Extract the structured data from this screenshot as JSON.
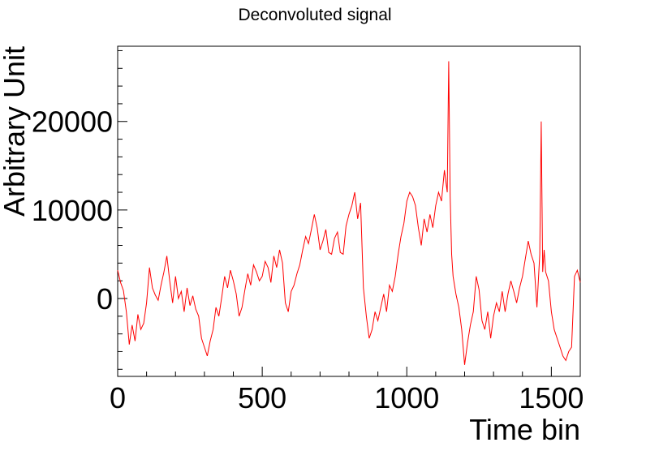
{
  "chart_data": {
    "type": "line",
    "title": "Deconvoluted signal",
    "xlabel": "Time bin",
    "ylabel": "Arbitrary Unit",
    "xlim": [
      0,
      1600
    ],
    "ylim": [
      -8800,
      28500
    ],
    "x_ticks": [
      0,
      500,
      1000,
      1500
    ],
    "y_ticks": [
      0,
      10000,
      20000
    ],
    "grid": false,
    "legend": "none",
    "line_color": "#ff0000",
    "series": [
      {
        "x": [
          0,
          10,
          20,
          30,
          40,
          50,
          60,
          70,
          80,
          90,
          100,
          110,
          120,
          130,
          140,
          150,
          160,
          170,
          180,
          190,
          200,
          210,
          220,
          230,
          240,
          250,
          260,
          270,
          280,
          290,
          300,
          310,
          320,
          330,
          340,
          350,
          360,
          370,
          380,
          390,
          400,
          410,
          420,
          430,
          440,
          450,
          460,
          470,
          480,
          490,
          500,
          510,
          520,
          530,
          540,
          550,
          560,
          570,
          580,
          590,
          600,
          610,
          620,
          630,
          640,
          650,
          660,
          670,
          680,
          690,
          700,
          710,
          720,
          730,
          740,
          750,
          760,
          770,
          780,
          790,
          800,
          810,
          820,
          830,
          840,
          850,
          860,
          870,
          880,
          890,
          900,
          910,
          920,
          930,
          940,
          950,
          960,
          970,
          980,
          990,
          1000,
          1010,
          1020,
          1030,
          1040,
          1050,
          1060,
          1070,
          1080,
          1090,
          1100,
          1110,
          1120,
          1130,
          1140,
          1145,
          1150,
          1155,
          1160,
          1170,
          1180,
          1190,
          1200,
          1210,
          1220,
          1230,
          1240,
          1250,
          1260,
          1270,
          1280,
          1290,
          1300,
          1310,
          1320,
          1330,
          1340,
          1350,
          1360,
          1370,
          1380,
          1390,
          1400,
          1410,
          1420,
          1430,
          1440,
          1450,
          1460,
          1465,
          1470,
          1475,
          1480,
          1490,
          1500,
          1510,
          1520,
          1530,
          1540,
          1550,
          1560,
          1570,
          1580,
          1590,
          1600
        ],
        "y": [
          3200,
          1800,
          900,
          -1500,
          -5200,
          -3000,
          -4800,
          -1800,
          -3500,
          -2800,
          -500,
          3500,
          1200,
          400,
          -200,
          1500,
          3000,
          4800,
          2000,
          -500,
          2500,
          0,
          800,
          -1500,
          1200,
          -800,
          300,
          -1200,
          -2000,
          -4500,
          -5500,
          -6500,
          -4800,
          -3500,
          -1000,
          -2000,
          200,
          2500,
          1200,
          3200,
          2000,
          500,
          -2000,
          -1000,
          1000,
          2800,
          1500,
          3800,
          3000,
          2000,
          2500,
          4200,
          3500,
          1800,
          4800,
          3500,
          5500,
          4000,
          -500,
          -1500,
          800,
          1500,
          2800,
          3800,
          5500,
          7000,
          6200,
          7800,
          9500,
          8000,
          5500,
          6500,
          7800,
          5200,
          5000,
          6800,
          7500,
          5200,
          5000,
          8200,
          9500,
          10500,
          12000,
          9000,
          10800,
          1200,
          -2000,
          -4500,
          -3500,
          -1500,
          -2500,
          -1000,
          500,
          -1500,
          1500,
          800,
          2500,
          5000,
          7000,
          8500,
          11000,
          12000,
          11500,
          10500,
          8000,
          6000,
          9000,
          7500,
          9500,
          8000,
          10500,
          12000,
          11000,
          14500,
          12000,
          26800,
          11500,
          5000,
          2500,
          500,
          -1000,
          -3500,
          -7500,
          -5000,
          -3000,
          -1500,
          2500,
          1000,
          -2500,
          -3500,
          -1500,
          -4500,
          -2000,
          -500,
          -1500,
          800,
          -1500,
          500,
          2000,
          800,
          -500,
          1200,
          2500,
          4500,
          6500,
          5000,
          4000,
          -1000,
          5000,
          20000,
          3000,
          5500,
          3000,
          2000,
          -1500,
          -3500,
          -4500,
          -5500,
          -6500,
          -7000,
          -6000,
          -5500,
          2500,
          3200,
          1800
        ]
      }
    ]
  }
}
